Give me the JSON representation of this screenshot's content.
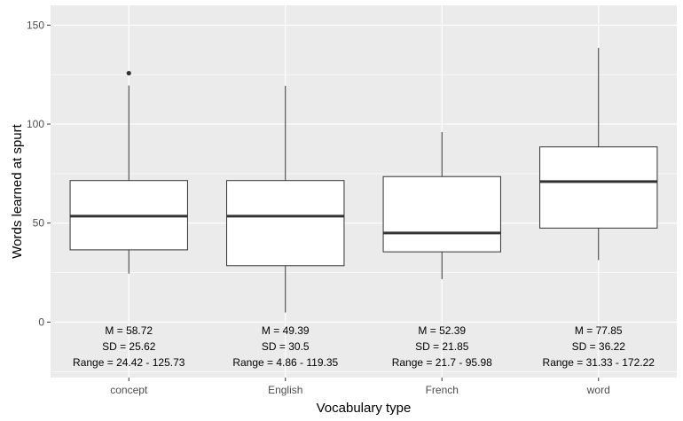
{
  "chart_data": {
    "type": "box",
    "xlabel": "Vocabulary type",
    "ylabel": "Words learned at spurt",
    "ylim": [
      -28,
      160
    ],
    "yticks": [
      0,
      50,
      100,
      150
    ],
    "grid": true,
    "colors": {
      "panel": "#ebebeb",
      "grid_major": "#ffffff",
      "box_fill": "#ffffff",
      "box_stroke": "#333333",
      "tick_text": "#4d4d4d"
    },
    "categories": [
      "concept",
      "English",
      "French",
      "word"
    ],
    "boxes": [
      {
        "category": "concept",
        "lower_whisker": 24.5,
        "q1": 36.5,
        "median": 53.5,
        "q3": 71.5,
        "upper_whisker": 119.5,
        "outliers": [
          125.73
        ]
      },
      {
        "category": "English",
        "lower_whisker": 4.86,
        "q1": 28.5,
        "median": 53.5,
        "q3": 71.5,
        "upper_whisker": 119.35,
        "outliers": []
      },
      {
        "category": "French",
        "lower_whisker": 21.7,
        "q1": 35.5,
        "median": 45,
        "q3": 73.5,
        "upper_whisker": 95.98,
        "outliers": []
      },
      {
        "category": "word",
        "lower_whisker": 31.33,
        "q1": 47.5,
        "median": 71,
        "q3": 88.5,
        "upper_whisker": 138.5,
        "outliers": []
      }
    ],
    "annotations": [
      {
        "category": "concept",
        "mean": "M =  58.72",
        "sd": "SD =  25.62",
        "range": "Range =  24.42 - 125.73"
      },
      {
        "category": "English",
        "mean": "M =  49.39",
        "sd": "SD =  30.5",
        "range": "Range =  4.86 - 119.35"
      },
      {
        "category": "French",
        "mean": "M =  52.39",
        "sd": "SD =  21.85",
        "range": "Range =  21.7 - 95.98"
      },
      {
        "category": "word",
        "mean": "M =  77.85",
        "sd": "SD =  36.22",
        "range": "Range =  31.33 - 172.22"
      }
    ]
  }
}
